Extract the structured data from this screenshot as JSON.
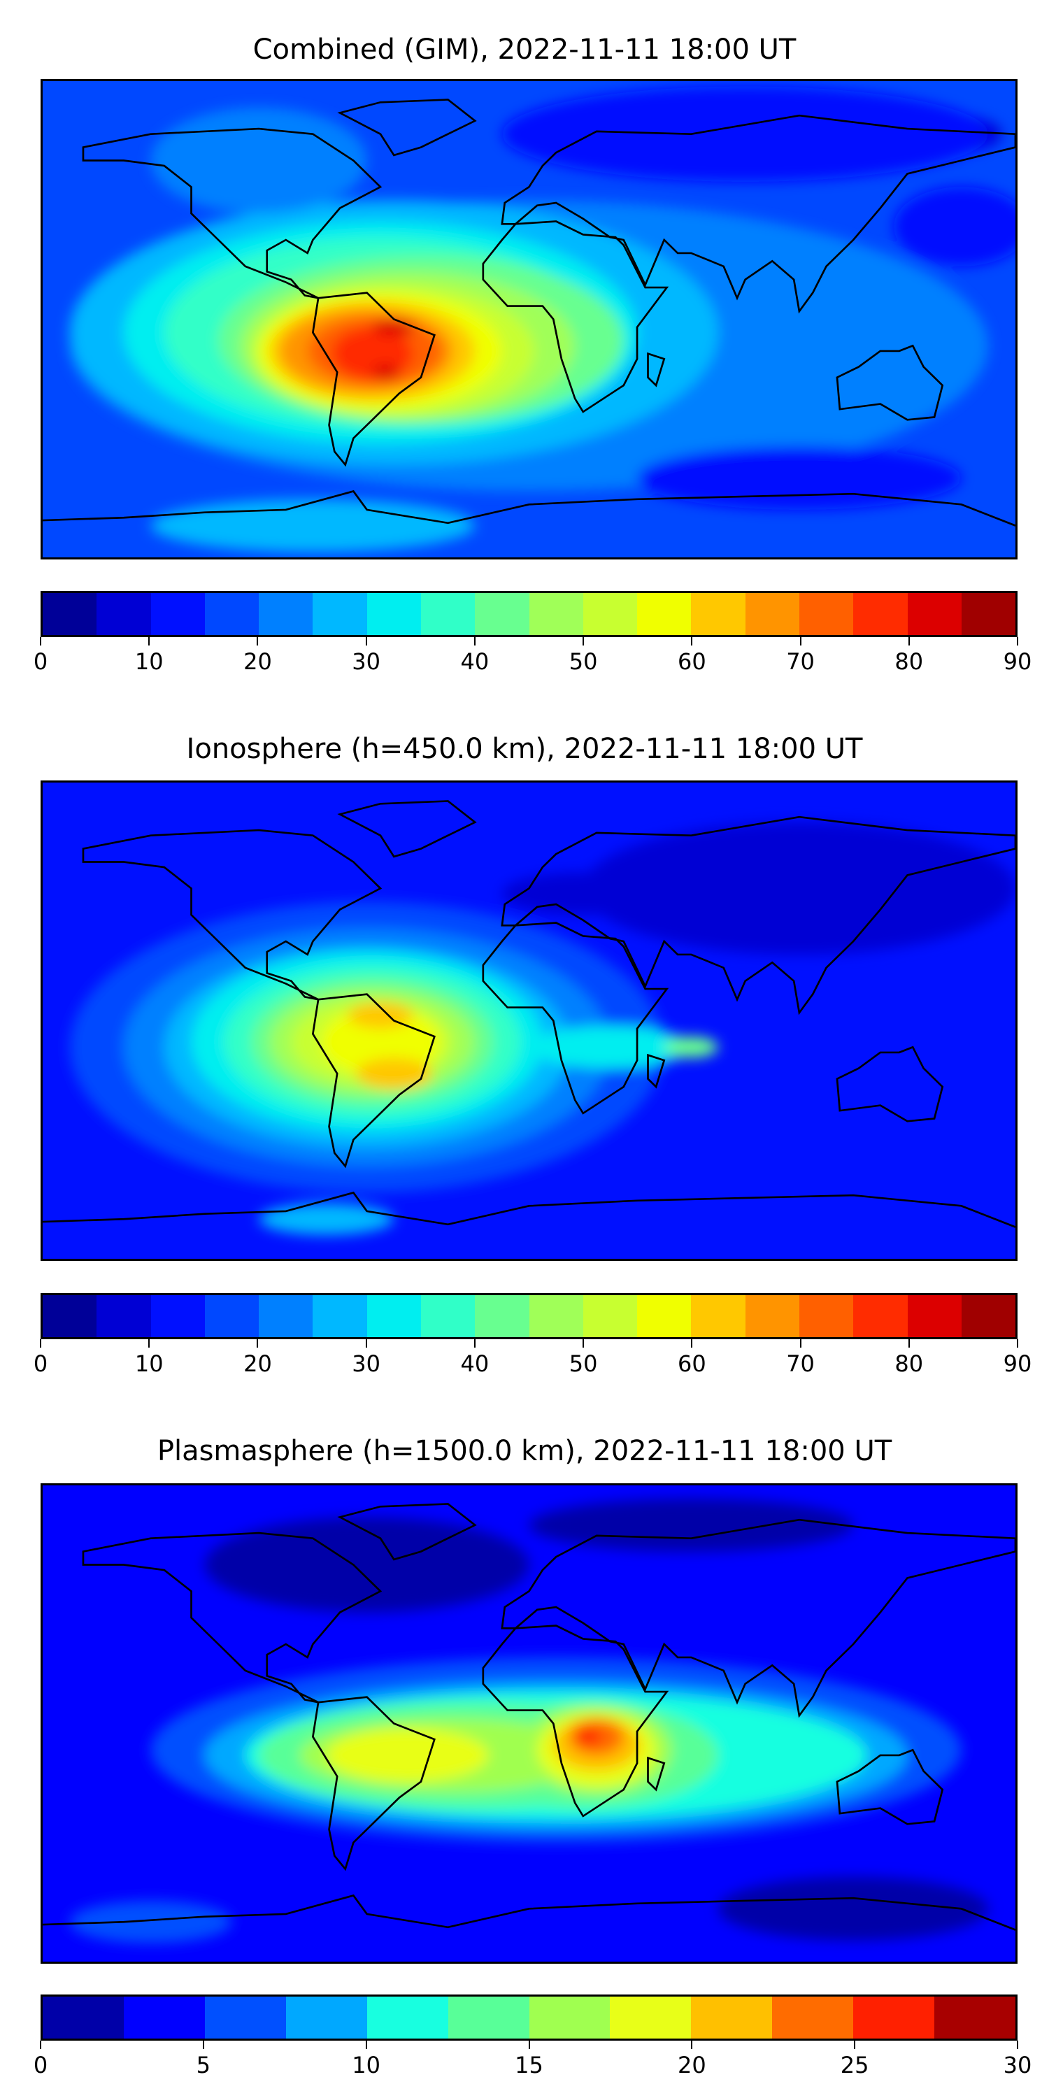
{
  "chart_data": [
    {
      "type": "heatmap",
      "title": "Combined (GIM), 2022-11-11 18:00 UT",
      "colorbar": {
        "range": [
          0,
          90
        ],
        "step": 5,
        "ticks": [
          "0",
          "10",
          "20",
          "30",
          "40",
          "50",
          "60",
          "70",
          "80",
          "90"
        ],
        "colors": [
          "#000098",
          "#0000d4",
          "#0010ff",
          "#0048ff",
          "#0080ff",
          "#00b8ff",
          "#00eef0",
          "#30ffc8",
          "#68ff90",
          "#a0ff58",
          "#c8ff30",
          "#f0ff00",
          "#ffc800",
          "#ff9400",
          "#ff6000",
          "#ff2c00",
          "#dc0000",
          "#a00000"
        ]
      },
      "peak_value_approx": 82,
      "peak_region": "South America"
    },
    {
      "type": "heatmap",
      "title": "Ionosphere  (h=450.0 km), 2022-11-11 18:00 UT",
      "colorbar": {
        "range": [
          0,
          90
        ],
        "step": 5,
        "ticks": [
          "0",
          "10",
          "20",
          "30",
          "40",
          "50",
          "60",
          "70",
          "80",
          "90"
        ],
        "colors": [
          "#000098",
          "#0000d4",
          "#0010ff",
          "#0048ff",
          "#0080ff",
          "#00b8ff",
          "#00eef0",
          "#30ffc8",
          "#68ff90",
          "#a0ff58",
          "#c8ff30",
          "#f0ff00",
          "#ffc800",
          "#ff9400",
          "#ff6000",
          "#ff2c00",
          "#dc0000",
          "#a00000"
        ]
      },
      "peak_value_approx": 62,
      "peak_region": "South America"
    },
    {
      "type": "heatmap",
      "title": "Plasmasphere (h=1500.0 km), 2022-11-11 18:00 UT",
      "colorbar": {
        "range": [
          0,
          30
        ],
        "step": 2.5,
        "ticks": [
          "0",
          "5",
          "10",
          "15",
          "20",
          "25",
          "30"
        ],
        "colors": [
          "#0000a8",
          "#0000ff",
          "#0050ff",
          "#00a8ff",
          "#18ffe0",
          "#58ff98",
          "#a0ff50",
          "#e8ff18",
          "#ffc000",
          "#ff6c00",
          "#ff2000",
          "#a80000"
        ]
      },
      "peak_value_approx": 26,
      "peak_region": "Central Africa"
    }
  ]
}
